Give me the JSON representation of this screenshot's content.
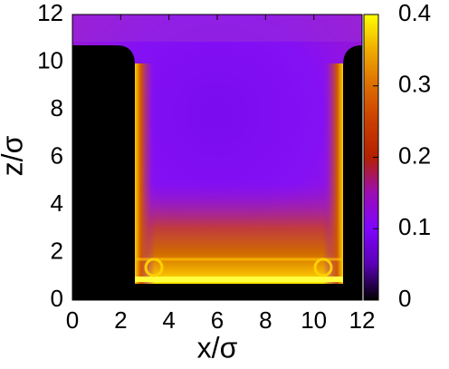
{
  "chart_data": {
    "type": "heatmap",
    "xlabel": "x/σ",
    "ylabel": "z/σ",
    "xlim": [
      0,
      12
    ],
    "ylim": [
      0,
      12
    ],
    "xticks": [
      0,
      2,
      4,
      6,
      8,
      10,
      12
    ],
    "yticks": [
      0,
      2,
      4,
      6,
      8,
      10,
      12
    ],
    "colorbar": {
      "clim": [
        0,
        0.4
      ],
      "ticks": [
        0,
        0.1,
        0.2,
        0.3,
        0.4
      ]
    }
  }
}
